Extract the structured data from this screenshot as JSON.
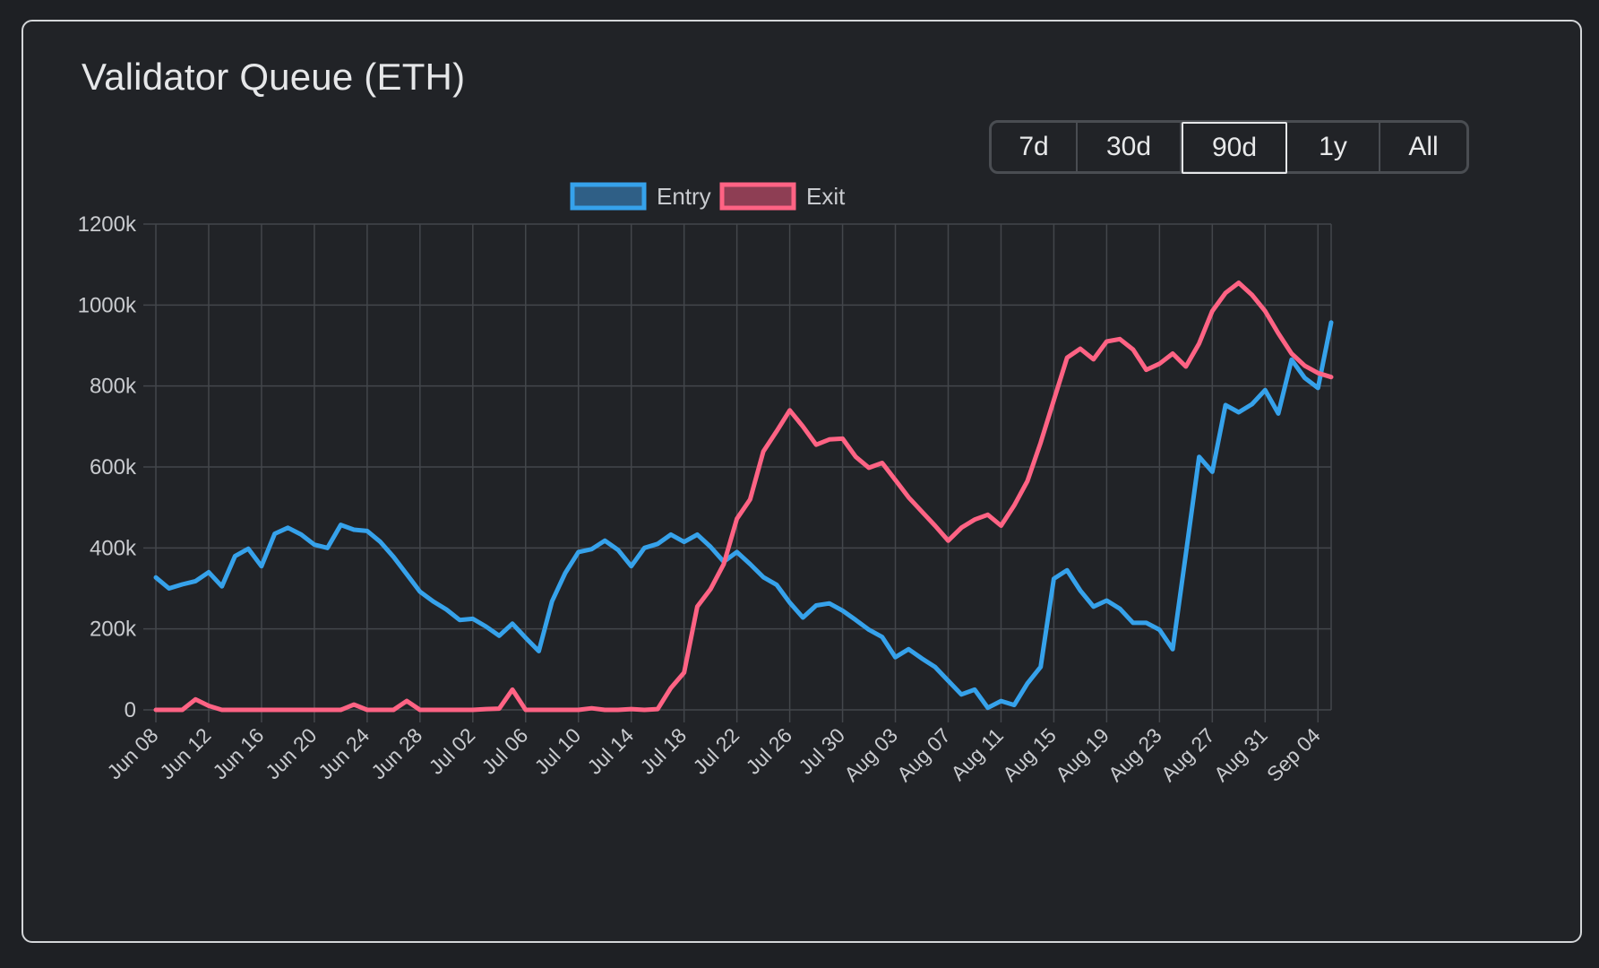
{
  "card": {
    "title": "Validator Queue (ETH)"
  },
  "range_selector": {
    "options": [
      "7d",
      "30d",
      "90d",
      "1y",
      "All"
    ],
    "selected": "90d"
  },
  "colors": {
    "entry": "#36a2eb",
    "exit": "#ff6384",
    "grid": "#43464b",
    "text": "#c9cbcf",
    "background": "#212327"
  },
  "chart_data": {
    "type": "line",
    "ylim": [
      0,
      1200000
    ],
    "y_ticks": [
      "0",
      "200k",
      "400k",
      "600k",
      "800k",
      "1000k",
      "1200k"
    ],
    "x_tick_labels": [
      "Jun 08",
      "Jun 12",
      "Jun 16",
      "Jun 20",
      "Jun 24",
      "Jun 28",
      "Jul 02",
      "Jul 06",
      "Jul 10",
      "Jul 14",
      "Jul 18",
      "Jul 22",
      "Jul 26",
      "Jul 30",
      "Aug 03",
      "Aug 07",
      "Aug 11",
      "Aug 15",
      "Aug 19",
      "Aug 23",
      "Aug 27",
      "Aug 31",
      "Sep 04"
    ],
    "legend": [
      "Entry",
      "Exit"
    ],
    "legend_position": "top-center",
    "grid": true,
    "series": [
      {
        "name": "Entry",
        "values": [
          327000,
          300000,
          310000,
          318000,
          340000,
          305000,
          380000,
          398000,
          355000,
          435000,
          450000,
          433000,
          408000,
          400000,
          457000,
          445000,
          442000,
          415000,
          378000,
          335000,
          292000,
          268000,
          248000,
          222000,
          225000,
          206000,
          183000,
          213000,
          178000,
          145000,
          268000,
          338000,
          390000,
          397000,
          418000,
          395000,
          355000,
          400000,
          410000,
          433000,
          415000,
          433000,
          403000,
          366000,
          390000,
          360000,
          328000,
          309000,
          265000,
          228000,
          258000,
          263000,
          245000,
          222000,
          198000,
          180000,
          130000,
          150000,
          127000,
          106000,
          72000,
          38000,
          50000,
          5000,
          22000,
          12000,
          65000,
          106000,
          324000,
          345000,
          295000,
          255000,
          270000,
          250000,
          215000,
          215000,
          198000,
          150000,
          385000,
          625000,
          588000,
          753000,
          735000,
          755000,
          790000,
          732000,
          865000,
          820000,
          795000,
          957000
        ]
      },
      {
        "name": "Exit",
        "values": [
          0,
          0,
          0,
          26000,
          10000,
          0,
          0,
          0,
          0,
          0,
          0,
          0,
          0,
          0,
          0,
          13000,
          0,
          0,
          0,
          22000,
          0,
          0,
          0,
          0,
          0,
          2000,
          3000,
          50000,
          0,
          0,
          0,
          0,
          0,
          4000,
          0,
          0,
          2000,
          0,
          2000,
          54000,
          92000,
          255000,
          298000,
          360000,
          472000,
          520000,
          638000,
          688000,
          740000,
          700000,
          655000,
          668000,
          670000,
          625000,
          598000,
          610000,
          568000,
          525000,
          490000,
          455000,
          418000,
          450000,
          470000,
          482000,
          455000,
          505000,
          565000,
          660000,
          765000,
          870000,
          892000,
          866000,
          910000,
          916000,
          890000,
          840000,
          855000,
          880000,
          848000,
          905000,
          985000,
          1030000,
          1055000,
          1025000,
          985000,
          930000,
          880000,
          850000,
          832000,
          822000
        ]
      }
    ]
  }
}
